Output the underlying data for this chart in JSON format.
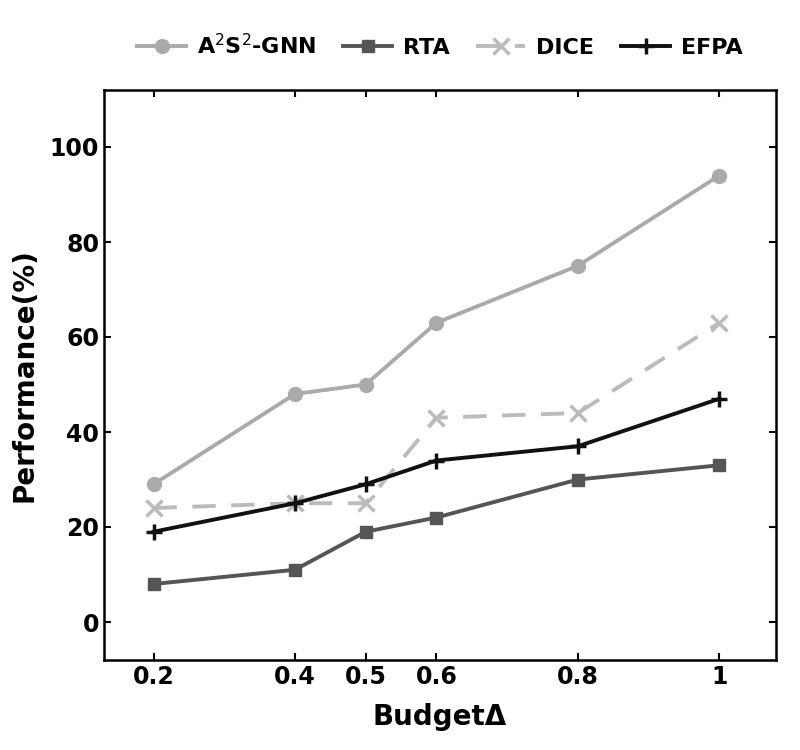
{
  "x": [
    0.2,
    0.4,
    0.5,
    0.6,
    0.8,
    1.0
  ],
  "A2S2_GNN": [
    29,
    48,
    50,
    63,
    75,
    94
  ],
  "RTA": [
    8,
    11,
    19,
    22,
    30,
    33
  ],
  "DICE": [
    24,
    25,
    25,
    43,
    44,
    63
  ],
  "EFPA": [
    19,
    25,
    29,
    34,
    37,
    47
  ],
  "A2S2_GNN_color": "#aaaaaa",
  "RTA_color": "#555555",
  "DICE_color": "#bbbbbb",
  "EFPA_color": "#111111",
  "ylabel": "Performance(%)",
  "xlabel": "BudgetΔ",
  "legend_A2S2": "A$^2$S$^2$-GNN",
  "legend_RTA": "RTA",
  "legend_DICE": "DICE",
  "legend_EFPA": "EFPA",
  "ylim": [
    -8,
    112
  ],
  "yticks": [
    0,
    20,
    40,
    60,
    80,
    100
  ],
  "xtick_labels": [
    "0.2",
    "0.4",
    "0.5",
    "0.6",
    "0.8",
    "1"
  ],
  "figsize": [
    8.0,
    7.5
  ],
  "dpi": 100,
  "background_color": "#ffffff"
}
